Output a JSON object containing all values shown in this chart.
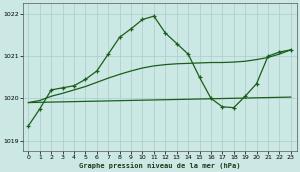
{
  "title": "Graphe pression niveau de la mer (hPa)",
  "bg_color": "#cce8e4",
  "grid_color": "#aacccc",
  "line_color": "#1a5e1a",
  "xlim": [
    -0.5,
    23.5
  ],
  "ylim": [
    1018.75,
    1022.25
  ],
  "yticks": [
    1019,
    1020,
    1021,
    1022
  ],
  "xticks": [
    0,
    1,
    2,
    3,
    4,
    5,
    6,
    7,
    8,
    9,
    10,
    11,
    12,
    13,
    14,
    15,
    16,
    17,
    18,
    19,
    20,
    21,
    22,
    23
  ],
  "jagged_x": [
    0,
    1,
    2,
    3,
    4,
    5,
    6,
    7,
    8,
    9,
    10,
    11,
    12,
    13,
    14,
    15,
    16,
    17,
    18,
    19,
    20,
    21,
    22,
    23
  ],
  "jagged_y": [
    1019.35,
    1019.75,
    1020.2,
    1020.25,
    1020.3,
    1020.45,
    1020.65,
    1021.05,
    1021.45,
    1021.65,
    1021.87,
    1021.95,
    1021.55,
    1021.3,
    1021.05,
    1020.5,
    1020.0,
    1019.8,
    1019.78,
    1020.05,
    1020.35,
    1021.0,
    1021.1,
    1021.15
  ],
  "trend1_x": [
    0,
    1,
    2,
    3,
    4,
    5,
    6,
    7,
    8,
    9,
    10,
    11,
    12,
    13,
    14,
    15,
    16,
    17,
    18,
    19,
    20,
    21,
    22,
    23
  ],
  "trend1_y": [
    1019.9,
    1019.95,
    1020.05,
    1020.12,
    1020.2,
    1020.28,
    1020.38,
    1020.48,
    1020.57,
    1020.65,
    1020.72,
    1020.77,
    1020.8,
    1020.82,
    1020.83,
    1020.84,
    1020.85,
    1020.85,
    1020.86,
    1020.88,
    1020.92,
    1020.97,
    1021.05,
    1021.15
  ],
  "trend2_x": [
    0,
    23
  ],
  "trend2_y": [
    1019.9,
    1020.03
  ]
}
